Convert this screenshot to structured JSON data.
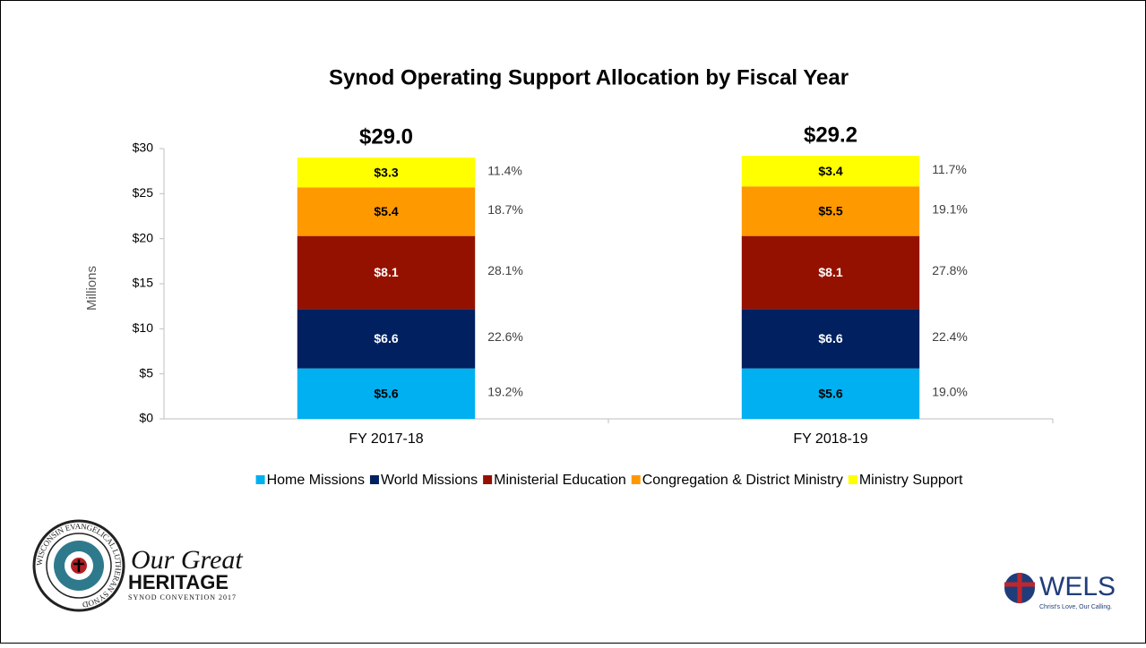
{
  "chart_data": {
    "type": "stacked_bar",
    "title": "Synod Operating Support Allocation by Fiscal Year",
    "ylabel": "Millions",
    "categories": [
      "FY 2017-18",
      "FY 2018-19"
    ],
    "ylim": [
      0,
      30
    ],
    "yticks": [
      {
        "value": 0,
        "label": "$0"
      },
      {
        "value": 5,
        "label": "$5"
      },
      {
        "value": 10,
        "label": "$10"
      },
      {
        "value": 15,
        "label": "$15"
      },
      {
        "value": 20,
        "label": "$20"
      },
      {
        "value": 25,
        "label": "$25"
      },
      {
        "value": 30,
        "label": "$30"
      }
    ],
    "totals": [
      29.0,
      29.2
    ],
    "total_labels": [
      "$29.0",
      "$29.2"
    ],
    "series": [
      {
        "name": "Home Missions",
        "color": "#00b0f0",
        "label_color": "#000000",
        "values": [
          5.6,
          5.6
        ],
        "value_labels": [
          "$5.6",
          "$5.6"
        ],
        "shares": [
          19.2,
          19.0
        ],
        "share_labels": [
          "19.2%",
          "19.0%"
        ]
      },
      {
        "name": "World Missions",
        "color": "#002060",
        "label_color": "#ffffff",
        "values": [
          6.6,
          6.6
        ],
        "value_labels": [
          "$6.6",
          "$6.6"
        ],
        "shares": [
          22.6,
          22.4
        ],
        "share_labels": [
          "22.6%",
          "22.4%"
        ]
      },
      {
        "name": "Ministerial Education",
        "color": "#941100",
        "label_color": "#ffffff",
        "values": [
          8.1,
          8.1
        ],
        "value_labels": [
          "$8.1",
          "$8.1"
        ],
        "shares": [
          28.1,
          27.8
        ],
        "share_labels": [
          "28.1%",
          "27.8%"
        ]
      },
      {
        "name": "Congregation & District Ministry",
        "color": "#ff9900",
        "label_color": "#000000",
        "values": [
          5.4,
          5.5
        ],
        "value_labels": [
          "$5.4",
          "$5.5"
        ],
        "shares": [
          18.7,
          19.1
        ],
        "share_labels": [
          "18.7%",
          "19.1%"
        ]
      },
      {
        "name": "Ministry Support",
        "color": "#ffff00",
        "label_color": "#000000",
        "values": [
          3.3,
          3.4
        ],
        "value_labels": [
          "$3.3",
          "$3.4"
        ],
        "shares": [
          11.4,
          11.7
        ],
        "share_labels": [
          "11.4%",
          "11.7%"
        ]
      }
    ]
  },
  "logos": {
    "seal_text": "WISCONSIN EVANGELICAL LUTHERAN SYNOD",
    "heritage_script": "Our Great",
    "heritage_word": "HERITAGE",
    "heritage_sub": "SYNOD CONVENTION 2017",
    "wels": "WELS",
    "wels_tagline": "Christ's Love, Our Calling."
  }
}
